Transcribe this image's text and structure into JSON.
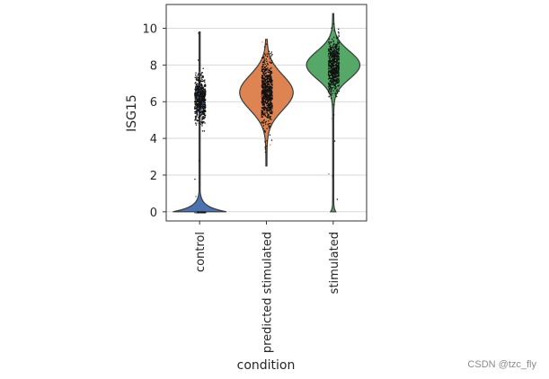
{
  "chart_data": {
    "type": "violin",
    "title": "",
    "xlabel": "condition",
    "ylabel": "ISG15",
    "ylim": [
      -0.5,
      11.3
    ],
    "yticks": [
      0,
      2,
      4,
      6,
      8,
      10
    ],
    "grid": "horizontal",
    "categories": [
      "control",
      "predicted stimulated",
      "stimulated"
    ],
    "series": [
      {
        "name": "control",
        "color": "#4c72b0",
        "min": 0,
        "max": 9.8,
        "bulk_range": [
          5.2,
          8.3
        ],
        "bulk_center": 6.2,
        "zero_fraction": 0.9,
        "description_values": {
          "median": 0
        }
      },
      {
        "name": "predicted stimulated",
        "color": "#dd8452",
        "min": 2.5,
        "max": 9.4,
        "bulk_range": [
          4.5,
          8.5
        ],
        "bulk_center": 6.5,
        "zero_fraction": 0,
        "description_values": {
          "median": 6.5
        }
      },
      {
        "name": "stimulated",
        "color": "#55a868",
        "min": 0,
        "max": 10.8,
        "bulk_range": [
          6.5,
          9.8
        ],
        "bulk_center": 8.0,
        "zero_fraction": 0.01,
        "description_values": {
          "median": 8.0
        }
      }
    ]
  },
  "watermark": "CSDN @tzc_fly"
}
